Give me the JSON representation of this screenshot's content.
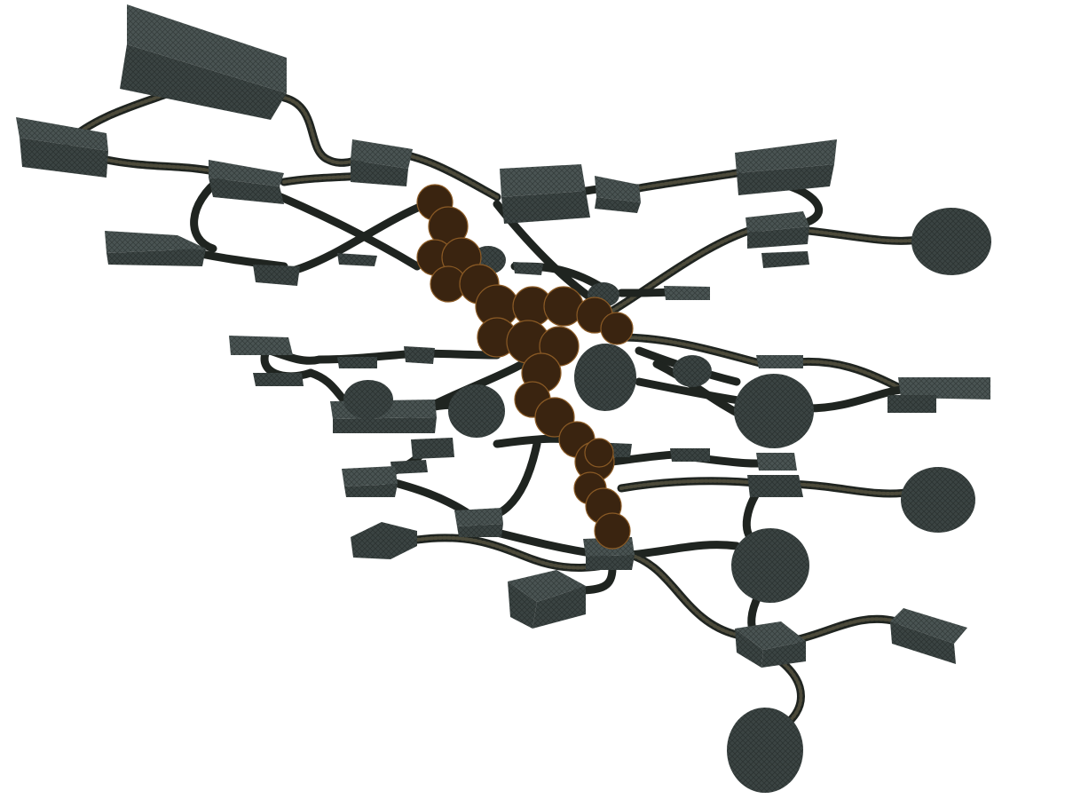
{
  "scene": {
    "title": "",
    "background_color": "#ffffff",
    "node_color": "#3b4443",
    "cable_color": "#1f2420",
    "core_color": "#3a2410",
    "core_highlight_color": "#8a5a25"
  }
}
